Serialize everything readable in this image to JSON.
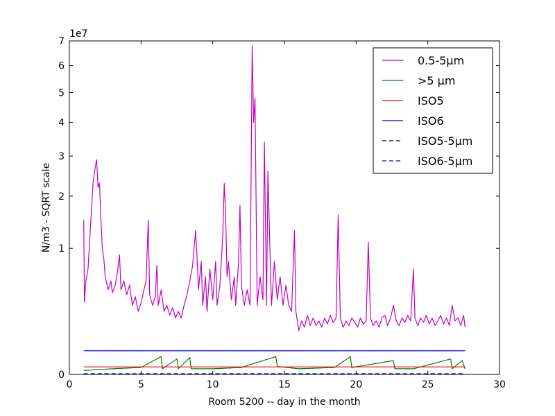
{
  "chart_data": {
    "type": "line",
    "xlabel": "Room 5200 -- day in the month",
    "ylabel": "N/m3 - SQRT scale",
    "offset_text": "1e7",
    "y_scale": "sqrt",
    "xlim": [
      0,
      30
    ],
    "ylim": [
      0,
      7
    ],
    "x_ticks": [
      0,
      5,
      10,
      15,
      20,
      25,
      30
    ],
    "x_tick_labels": [
      "0",
      "5",
      "10",
      "15",
      "20",
      "25",
      "30"
    ],
    "y_ticks": [
      0,
      1,
      2,
      3,
      4,
      5,
      6,
      7
    ],
    "y_tick_labels": [
      "0",
      "1",
      "2",
      "3",
      "4",
      "5",
      "6",
      "7"
    ],
    "grid": false,
    "legend_position": "top-right",
    "series": [
      {
        "name": "0.5-5µm",
        "color": "#bf00bf",
        "style": "solid",
        "points": [
          [
            1.0,
            1.5
          ],
          [
            1.05,
            0.33
          ],
          [
            1.15,
            0.55
          ],
          [
            1.3,
            0.7
          ],
          [
            1.5,
            1.5
          ],
          [
            1.65,
            2.3
          ],
          [
            1.8,
            2.7
          ],
          [
            1.9,
            2.9
          ],
          [
            2.0,
            2.2
          ],
          [
            2.1,
            2.3
          ],
          [
            2.2,
            1.5
          ],
          [
            2.3,
            1.0
          ],
          [
            2.4,
            0.85
          ],
          [
            2.5,
            0.6
          ],
          [
            2.7,
            0.45
          ],
          [
            2.9,
            0.55
          ],
          [
            3.0,
            0.42
          ],
          [
            3.2,
            0.5
          ],
          [
            3.35,
            0.65
          ],
          [
            3.5,
            0.9
          ],
          [
            3.6,
            0.45
          ],
          [
            3.8,
            0.55
          ],
          [
            4.0,
            0.4
          ],
          [
            4.2,
            0.5
          ],
          [
            4.4,
            0.3
          ],
          [
            4.6,
            0.38
          ],
          [
            4.8,
            0.25
          ],
          [
            5.0,
            0.32
          ],
          [
            5.2,
            0.45
          ],
          [
            5.35,
            0.55
          ],
          [
            5.5,
            1.5
          ],
          [
            5.6,
            0.4
          ],
          [
            5.8,
            0.3
          ],
          [
            6.0,
            0.38
          ],
          [
            6.1,
            0.75
          ],
          [
            6.2,
            0.3
          ],
          [
            6.4,
            0.45
          ],
          [
            6.6,
            0.25
          ],
          [
            6.8,
            0.3
          ],
          [
            7.0,
            0.22
          ],
          [
            7.2,
            0.28
          ],
          [
            7.4,
            0.2
          ],
          [
            7.6,
            0.25
          ],
          [
            7.8,
            0.2
          ],
          [
            8.0,
            0.3
          ],
          [
            8.2,
            0.4
          ],
          [
            8.4,
            0.55
          ],
          [
            8.6,
            0.75
          ],
          [
            8.8,
            1.3
          ],
          [
            8.9,
            0.9
          ],
          [
            9.0,
            0.45
          ],
          [
            9.2,
            0.8
          ],
          [
            9.3,
            0.3
          ],
          [
            9.5,
            0.6
          ],
          [
            9.6,
            0.25
          ],
          [
            9.8,
            0.7
          ],
          [
            10.0,
            0.35
          ],
          [
            10.2,
            0.8
          ],
          [
            10.3,
            0.3
          ],
          [
            10.5,
            0.5
          ],
          [
            10.7,
            1.2
          ],
          [
            10.8,
            2.3
          ],
          [
            10.9,
            1.6
          ],
          [
            11.0,
            0.6
          ],
          [
            11.1,
            0.8
          ],
          [
            11.3,
            0.35
          ],
          [
            11.5,
            0.6
          ],
          [
            11.6,
            0.3
          ],
          [
            11.8,
            0.8
          ],
          [
            11.9,
            1.8
          ],
          [
            12.0,
            0.5
          ],
          [
            12.2,
            0.3
          ],
          [
            12.4,
            0.45
          ],
          [
            12.6,
            0.3
          ],
          [
            12.75,
            6.8
          ],
          [
            12.85,
            4.0
          ],
          [
            12.95,
            4.8
          ],
          [
            13.1,
            0.3
          ],
          [
            13.3,
            0.6
          ],
          [
            13.5,
            0.35
          ],
          [
            13.6,
            3.4
          ],
          [
            13.75,
            0.3
          ],
          [
            13.85,
            2.6
          ],
          [
            14.0,
            0.9
          ],
          [
            14.1,
            0.3
          ],
          [
            14.3,
            0.8
          ],
          [
            14.5,
            0.35
          ],
          [
            14.7,
            0.6
          ],
          [
            14.9,
            0.3
          ],
          [
            15.1,
            0.5
          ],
          [
            15.3,
            0.3
          ],
          [
            15.5,
            0.25
          ],
          [
            15.7,
            1.3
          ],
          [
            15.8,
            0.25
          ],
          [
            16.0,
            0.12
          ],
          [
            16.2,
            0.18
          ],
          [
            16.4,
            0.14
          ],
          [
            16.6,
            0.22
          ],
          [
            16.8,
            0.15
          ],
          [
            17.0,
            0.2
          ],
          [
            17.2,
            0.15
          ],
          [
            17.4,
            0.18
          ],
          [
            17.6,
            0.14
          ],
          [
            17.8,
            0.2
          ],
          [
            18.0,
            0.16
          ],
          [
            18.2,
            0.22
          ],
          [
            18.4,
            0.17
          ],
          [
            18.6,
            0.2
          ],
          [
            18.75,
            1.6
          ],
          [
            18.9,
            0.2
          ],
          [
            19.1,
            0.14
          ],
          [
            19.3,
            0.18
          ],
          [
            19.5,
            0.15
          ],
          [
            19.7,
            0.2
          ],
          [
            19.9,
            0.17
          ],
          [
            20.1,
            0.14
          ],
          [
            20.3,
            0.2
          ],
          [
            20.5,
            0.16
          ],
          [
            20.7,
            0.18
          ],
          [
            20.85,
            1.1
          ],
          [
            21.0,
            0.2
          ],
          [
            21.2,
            0.15
          ],
          [
            21.4,
            0.18
          ],
          [
            21.6,
            0.14
          ],
          [
            21.8,
            0.2
          ],
          [
            22.0,
            0.22
          ],
          [
            22.2,
            0.15
          ],
          [
            22.4,
            0.2
          ],
          [
            22.6,
            0.3
          ],
          [
            22.8,
            0.18
          ],
          [
            23.0,
            0.15
          ],
          [
            23.2,
            0.2
          ],
          [
            23.4,
            0.17
          ],
          [
            23.6,
            0.22
          ],
          [
            23.8,
            0.18
          ],
          [
            24.0,
            0.7
          ],
          [
            24.1,
            0.2
          ],
          [
            24.3,
            0.15
          ],
          [
            24.5,
            0.2
          ],
          [
            24.7,
            0.17
          ],
          [
            24.9,
            0.22
          ],
          [
            25.1,
            0.16
          ],
          [
            25.3,
            0.2
          ],
          [
            25.5,
            0.15
          ],
          [
            25.7,
            0.18
          ],
          [
            25.9,
            0.22
          ],
          [
            26.1,
            0.16
          ],
          [
            26.3,
            0.2
          ],
          [
            26.5,
            0.15
          ],
          [
            26.7,
            0.3
          ],
          [
            26.9,
            0.18
          ],
          [
            27.1,
            0.2
          ],
          [
            27.3,
            0.15
          ],
          [
            27.5,
            0.22
          ],
          [
            27.6,
            0.14
          ]
        ]
      },
      {
        "name": ">5 µm",
        "color": "#008000",
        "style": "solid",
        "points": [
          [
            1.0,
            0.001
          ],
          [
            3.0,
            0.002
          ],
          [
            5.0,
            0.003
          ],
          [
            6.4,
            0.02
          ],
          [
            6.5,
            0.002
          ],
          [
            7.5,
            0.015
          ],
          [
            7.6,
            0.002
          ],
          [
            8.4,
            0.018
          ],
          [
            8.5,
            0.002
          ],
          [
            10.0,
            0.002
          ],
          [
            12.0,
            0.003
          ],
          [
            14.4,
            0.02
          ],
          [
            14.5,
            0.004
          ],
          [
            16.0,
            0.002
          ],
          [
            18.5,
            0.003
          ],
          [
            19.6,
            0.02
          ],
          [
            19.7,
            0.003
          ],
          [
            22.6,
            0.012
          ],
          [
            22.7,
            0.002
          ],
          [
            24.0,
            0.002
          ],
          [
            26.6,
            0.015
          ],
          [
            26.7,
            0.002
          ],
          [
            27.4,
            0.012
          ],
          [
            27.6,
            0.002
          ]
        ]
      },
      {
        "name": "ISO5",
        "color": "#ff0000",
        "style": "solid",
        "points": [
          [
            1.0,
            0.0035
          ],
          [
            27.6,
            0.0035
          ]
        ]
      },
      {
        "name": "ISO6",
        "color": "#0000ff",
        "style": "solid",
        "points": [
          [
            1.0,
            0.0352
          ],
          [
            27.6,
            0.0352
          ]
        ]
      },
      {
        "name": "ISO5-5µm",
        "color": "#000000",
        "style": "dashed",
        "points": [
          [
            1.0,
            2.9e-06
          ],
          [
            27.6,
            2.9e-06
          ]
        ]
      },
      {
        "name": "ISO6-5µm",
        "color": "#0000ff",
        "style": "dashed",
        "points": [
          [
            1.0,
            2.93e-05
          ],
          [
            27.6,
            2.93e-05
          ]
        ]
      }
    ]
  }
}
